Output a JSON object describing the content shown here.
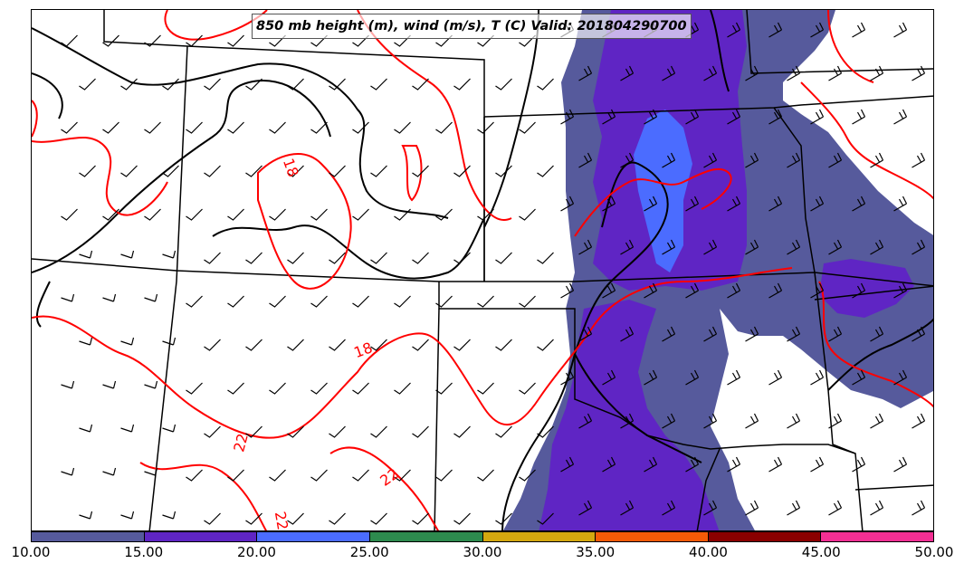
{
  "title": "850 mb height (m), wind (m/s), T (C) Valid: 201804290700",
  "colorbar": {
    "ticks": [
      "10.00",
      "15.00",
      "20.00",
      "25.00",
      "30.00",
      "35.00",
      "40.00",
      "45.00",
      "50.00"
    ],
    "colors": [
      "#565a9c",
      "#5f25c4",
      "#4b6cff",
      "#2d8a4e",
      "#d4a80f",
      "#f55a07",
      "#8a0000",
      "#f32f93"
    ]
  },
  "contour_labels": [
    {
      "id": "temp-18-north",
      "text": "18"
    },
    {
      "id": "temp-18-central",
      "text": "18"
    },
    {
      "id": "temp-22-south",
      "text": "22"
    },
    {
      "id": "temp-22-southeast",
      "text": "22"
    },
    {
      "id": "temp-22-bottom",
      "text": "22"
    }
  ],
  "colors": {
    "temperature_contour": "#ff0000",
    "height_contour": "#000000",
    "state_border": "#000000"
  }
}
